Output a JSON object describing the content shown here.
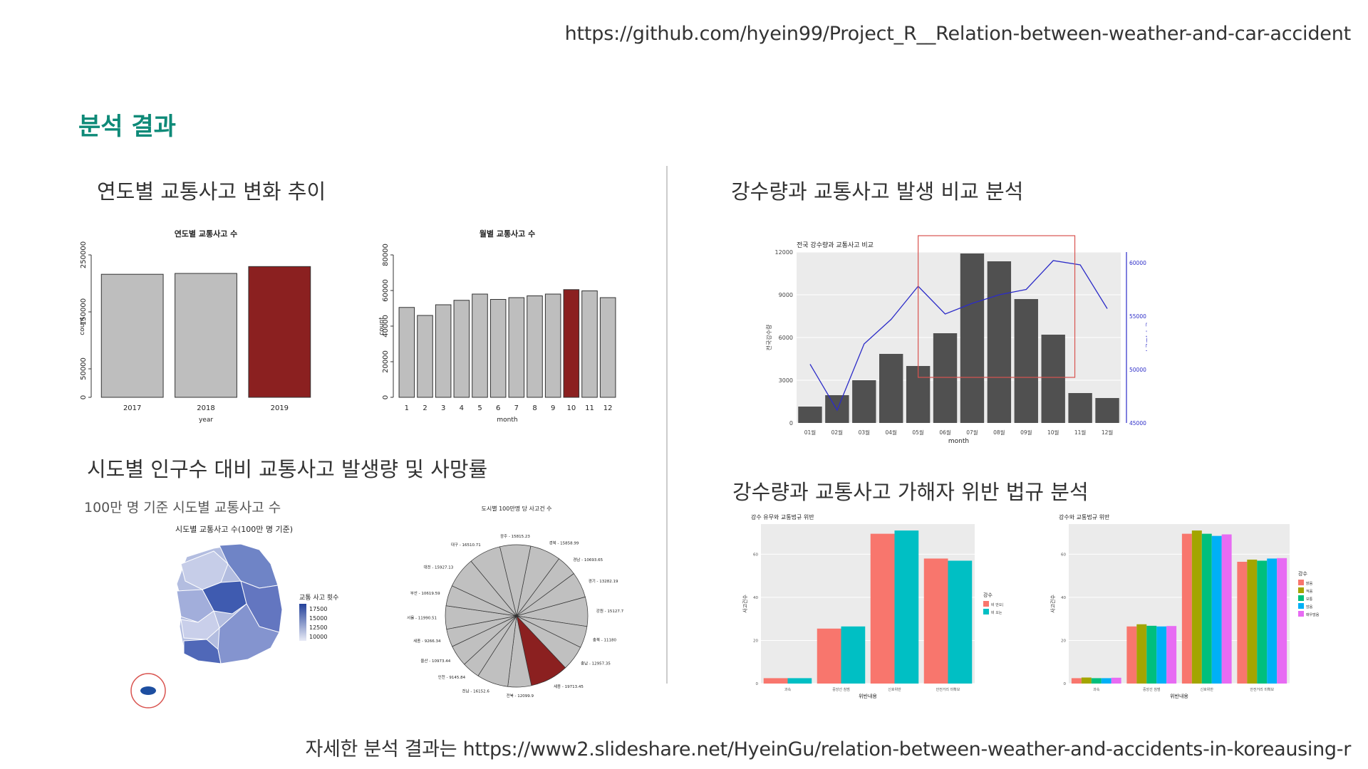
{
  "url_top": "https://github.com/hyein99/Project_R__Relation-between-weather-and-car-accident",
  "page_title": "분석 결과",
  "sections": {
    "yearly_trend": "연도별 교통사고 변화 추이",
    "rain_compare": "강수량과 교통사고 발생 비교 분석",
    "region": "시도별 인구수 대비 교통사고 발생량 및 사망률",
    "violation": "강수량과 교통사고 가해자 위반 법규 분석"
  },
  "map_subtitle": "100만 명 기준 시도별 교통사고 수",
  "url_bottom": "자세한 분석 결과는 https://www2.slideshare.net/HyeinGu/relation-between-weather-and-accidents-in-koreausing-r",
  "map": {
    "title": "시도별 교통사고 수(100만 명 기준)",
    "legend_title": "교통 사고 횟수",
    "legend_ticks": [
      "17500",
      "15000",
      "12500",
      "10000"
    ],
    "colors": {
      "low": "#e8ebf6",
      "high": "#23419a",
      "jeju": "#1d4ea0",
      "circle": "#d9534f"
    }
  },
  "chart_data": [
    {
      "type": "bar",
      "title": "연도별 교통사고 수",
      "xlabel": "year",
      "ylabel": "count",
      "categories": [
        "2017",
        "2018",
        "2019"
      ],
      "values": [
        216000,
        217500,
        229600
      ],
      "ylim": [
        0,
        250000
      ],
      "yticks": [
        0,
        50000,
        150000,
        250000
      ],
      "highlight_index": 2,
      "colors": {
        "bar": "#bebebe",
        "highlight": "#8b2020"
      }
    },
    {
      "type": "bar",
      "title": "월별 교통사고 수",
      "xlabel": "month",
      "ylabel": "count",
      "categories": [
        "1",
        "2",
        "3",
        "4",
        "5",
        "6",
        "7",
        "8",
        "9",
        "10",
        "11",
        "12"
      ],
      "values": [
        50500,
        46000,
        52000,
        54500,
        58000,
        55000,
        56000,
        57000,
        58000,
        60500,
        59800,
        56000
      ],
      "ylim": [
        0,
        80000
      ],
      "yticks": [
        0,
        20000,
        40000,
        60000,
        80000
      ],
      "highlight_index": 9,
      "colors": {
        "bar": "#bebebe",
        "highlight": "#8b2020"
      }
    },
    {
      "type": "bar",
      "title": "전국 강수량과 교통사고 비교",
      "xlabel": "month",
      "ylabel": "전국강수량",
      "y2label": "전국사고건수",
      "categories": [
        "01월",
        "02월",
        "03월",
        "04월",
        "05월",
        "06월",
        "07월",
        "08월",
        "09월",
        "10월",
        "11월",
        "12월"
      ],
      "values": [
        1150,
        1950,
        3000,
        4850,
        4000,
        6300,
        11900,
        11350,
        8700,
        6200,
        2100,
        1750
      ],
      "ylim": [
        0,
        12000
      ],
      "yticks": [
        0,
        3000,
        6000,
        9000,
        12000
      ],
      "line": {
        "values": [
          50500,
          46200,
          52400,
          54700,
          57800,
          55200,
          56200,
          57000,
          57500,
          60200,
          59800,
          55700
        ],
        "ylim": [
          45000,
          61000
        ],
        "yticks": [
          45000,
          50000,
          55000,
          60000
        ]
      },
      "colors": {
        "bar": "#505050",
        "line": "#2c2cc8",
        "panel": "#ebebeb",
        "highlight_box": "#d9534f"
      }
    },
    {
      "type": "pie",
      "title": "도시별 100만명 당 사고건 수",
      "categories": [
        "경북",
        "경남",
        "경기",
        "강원",
        "충북",
        "충남",
        "세종",
        "전북",
        "전남",
        "인천",
        "울산",
        "세종",
        "서울",
        "부산",
        "대전",
        "대구",
        "광주"
      ],
      "values": [
        15858.99,
        10693.65,
        13282.19,
        15127.7,
        11180,
        12957.35,
        19713.45,
        12099.9,
        16152.6,
        9145.84,
        10973.44,
        9266.34,
        11990.51,
        10619.59,
        15927.13,
        16510.71,
        15815.23
      ],
      "highlight_index": 6,
      "colors": {
        "slice": "#c0c0c0",
        "highlight": "#8b2020"
      }
    },
    {
      "type": "bar",
      "title": "강수 유무와 교통법규 위반",
      "xlabel": "위반내용",
      "ylabel": "사고건수",
      "categories": [
        "과속",
        "중앙선 침범",
        "신호위반",
        "안전거리 미확보"
      ],
      "series": [
        {
          "name": "비 안오는 날",
          "values": [
            2.5,
            25.5,
            69.5,
            58
          ]
        },
        {
          "name": "비 오는 날",
          "values": [
            2.5,
            26.5,
            71,
            57
          ]
        }
      ],
      "ylim": [
        0,
        74
      ],
      "yticks": [
        0,
        20,
        40,
        60
      ],
      "legend_title": "강수",
      "colors": [
        "#f8766d",
        "#00bfc4"
      ]
    },
    {
      "type": "bar",
      "title": "강수와 교통법규 위반",
      "xlabel": "위반내용",
      "ylabel": "사고건수",
      "categories": [
        "과속",
        "중앙선 침범",
        "신호위반",
        "안전거리 미확보"
      ],
      "series": [
        {
          "name": "맑음",
          "values": [
            2.5,
            26.5,
            69.5,
            56.5
          ]
        },
        {
          "name": "적음",
          "values": [
            2.8,
            27.5,
            71,
            57.5
          ]
        },
        {
          "name": "보통",
          "values": [
            2.5,
            26.8,
            69.5,
            57
          ]
        },
        {
          "name": "많음",
          "values": [
            2.5,
            26.5,
            68.5,
            58
          ]
        },
        {
          "name": "매우많음",
          "values": [
            2.7,
            26.7,
            69.2,
            58.2
          ]
        }
      ],
      "ylim": [
        0,
        74
      ],
      "yticks": [
        0,
        20,
        40,
        60
      ],
      "legend_title": "강수",
      "colors": [
        "#f8766d",
        "#a3a500",
        "#00bf7d",
        "#00b0f6",
        "#e76bf3"
      ]
    }
  ]
}
